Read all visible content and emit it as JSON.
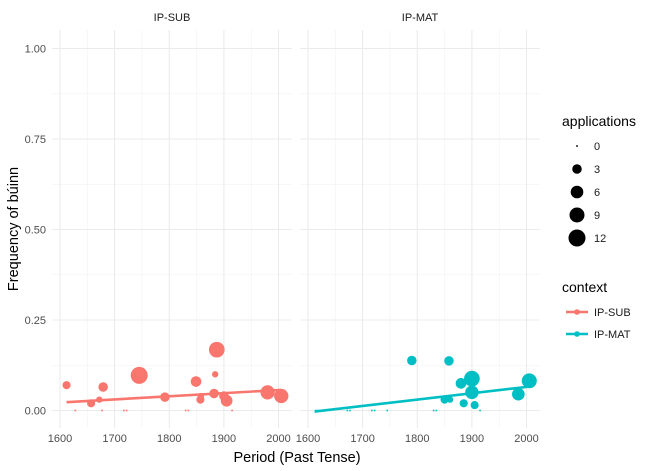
{
  "chart_data": {
    "type": "scatter",
    "facets": [
      "IP-SUB",
      "IP-MAT"
    ],
    "xlabel": "Period (Past Tense)",
    "ylabel": "Frequency of búinn",
    "xlim": [
      1600,
      2010
    ],
    "ylim": [
      0,
      1
    ],
    "x_ticks": [
      "1600",
      "1700",
      "1800",
      "1900",
      "2000"
    ],
    "y_ticks": [
      "0.00",
      "0.25",
      "0.50",
      "0.75",
      "1.00"
    ],
    "grid": true,
    "legend_position": "right",
    "size_legend": {
      "title": "applications",
      "values": [
        0,
        3,
        6,
        9,
        12
      ],
      "labels": [
        "0",
        "3",
        "6",
        "9",
        "12"
      ]
    },
    "color_legend": {
      "title": "context",
      "items": [
        {
          "label": "IP-SUB",
          "color": "#F8766D"
        },
        {
          "label": "IP-MAT",
          "color": "#00BFC4"
        }
      ]
    },
    "series": [
      {
        "name": "IP-SUB",
        "color": "#F8766D",
        "points": [
          {
            "x": 1612,
            "y": 0.07,
            "size": 2
          },
          {
            "x": 1628,
            "y": 0.0,
            "size": 0
          },
          {
            "x": 1657,
            "y": 0.02,
            "size": 2
          },
          {
            "x": 1672,
            "y": 0.03,
            "size": 1
          },
          {
            "x": 1679,
            "y": 0.065,
            "size": 3
          },
          {
            "x": 1677,
            "y": 0.0,
            "size": 0
          },
          {
            "x": 1717,
            "y": 0.0,
            "size": 0
          },
          {
            "x": 1722,
            "y": 0.0,
            "size": 0
          },
          {
            "x": 1745,
            "y": 0.097,
            "size": 12
          },
          {
            "x": 1792,
            "y": 0.037,
            "size": 3
          },
          {
            "x": 1830,
            "y": 0.0,
            "size": 0
          },
          {
            "x": 1835,
            "y": 0.0,
            "size": 0
          },
          {
            "x": 1849,
            "y": 0.08,
            "size": 4
          },
          {
            "x": 1857,
            "y": 0.03,
            "size": 2
          },
          {
            "x": 1858,
            "y": 0.04,
            "size": 1
          },
          {
            "x": 1882,
            "y": 0.047,
            "size": 3
          },
          {
            "x": 1884,
            "y": 0.1,
            "size": 1
          },
          {
            "x": 1887,
            "y": 0.168,
            "size": 10
          },
          {
            "x": 1900,
            "y": 0.04,
            "size": 3
          },
          {
            "x": 1905,
            "y": 0.027,
            "size": 5
          },
          {
            "x": 1915,
            "y": 0.0,
            "size": 0
          },
          {
            "x": 1980,
            "y": 0.05,
            "size": 8
          },
          {
            "x": 2005,
            "y": 0.04,
            "size": 8
          }
        ],
        "trend": {
          "x": [
            1612,
            2005
          ],
          "y": [
            0.023,
            0.057
          ]
        }
      },
      {
        "name": "IP-MAT",
        "color": "#00BFC4",
        "points": [
          {
            "x": 1614,
            "y": 0.0,
            "size": 0
          },
          {
            "x": 1618,
            "y": 0.0,
            "size": 0
          },
          {
            "x": 1630,
            "y": 0.0,
            "size": 0
          },
          {
            "x": 1672,
            "y": 0.0,
            "size": 0
          },
          {
            "x": 1677,
            "y": 0.0,
            "size": 0
          },
          {
            "x": 1717,
            "y": 0.0,
            "size": 0
          },
          {
            "x": 1722,
            "y": 0.0,
            "size": 0
          },
          {
            "x": 1745,
            "y": 0.0,
            "size": 0
          },
          {
            "x": 1790,
            "y": 0.138,
            "size": 3
          },
          {
            "x": 1830,
            "y": 0.0,
            "size": 0
          },
          {
            "x": 1835,
            "y": 0.0,
            "size": 0
          },
          {
            "x": 1850,
            "y": 0.03,
            "size": 2
          },
          {
            "x": 1858,
            "y": 0.137,
            "size": 3
          },
          {
            "x": 1860,
            "y": 0.03,
            "size": 1
          },
          {
            "x": 1880,
            "y": 0.075,
            "size": 4
          },
          {
            "x": 1885,
            "y": 0.02,
            "size": 2
          },
          {
            "x": 1900,
            "y": 0.088,
            "size": 10
          },
          {
            "x": 1900,
            "y": 0.05,
            "size": 7
          },
          {
            "x": 1905,
            "y": 0.015,
            "size": 2
          },
          {
            "x": 1915,
            "y": 0.0,
            "size": 0
          },
          {
            "x": 1985,
            "y": 0.045,
            "size": 6
          },
          {
            "x": 2005,
            "y": 0.082,
            "size": 9
          }
        ],
        "trend": {
          "x": [
            1612,
            2005
          ],
          "y": [
            -0.003,
            0.066
          ]
        }
      }
    ]
  }
}
